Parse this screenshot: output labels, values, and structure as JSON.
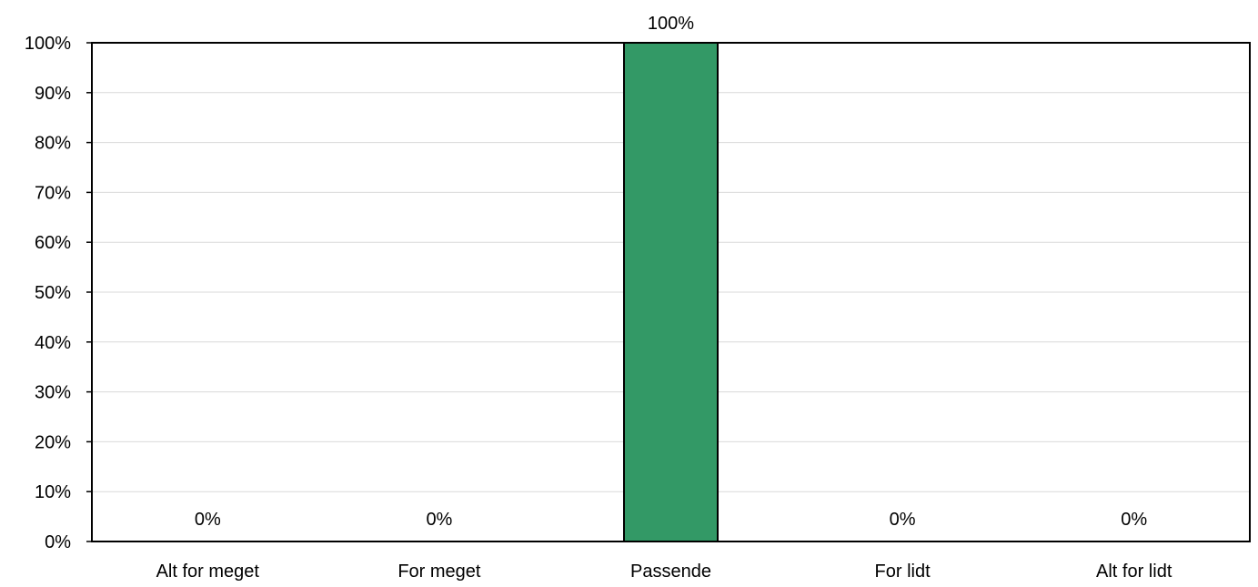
{
  "chart_data": {
    "type": "bar",
    "categories": [
      "Alt for meget",
      "For meget",
      "Passende",
      "For lidt",
      "Alt for lidt"
    ],
    "values": [
      0,
      0,
      100,
      0,
      0
    ],
    "data_labels": [
      "0%",
      "0%",
      "100%",
      "0%",
      "0%"
    ],
    "y_ticks": [
      "0%",
      "10%",
      "20%",
      "30%",
      "40%",
      "50%",
      "60%",
      "70%",
      "80%",
      "90%",
      "100%"
    ],
    "ylim": [
      0,
      100
    ],
    "grid": true,
    "legend": "none",
    "colors": {
      "bar": "#339966",
      "bar_border": "#000000",
      "grid": "#d9d9d9",
      "axis": "#000000"
    }
  }
}
